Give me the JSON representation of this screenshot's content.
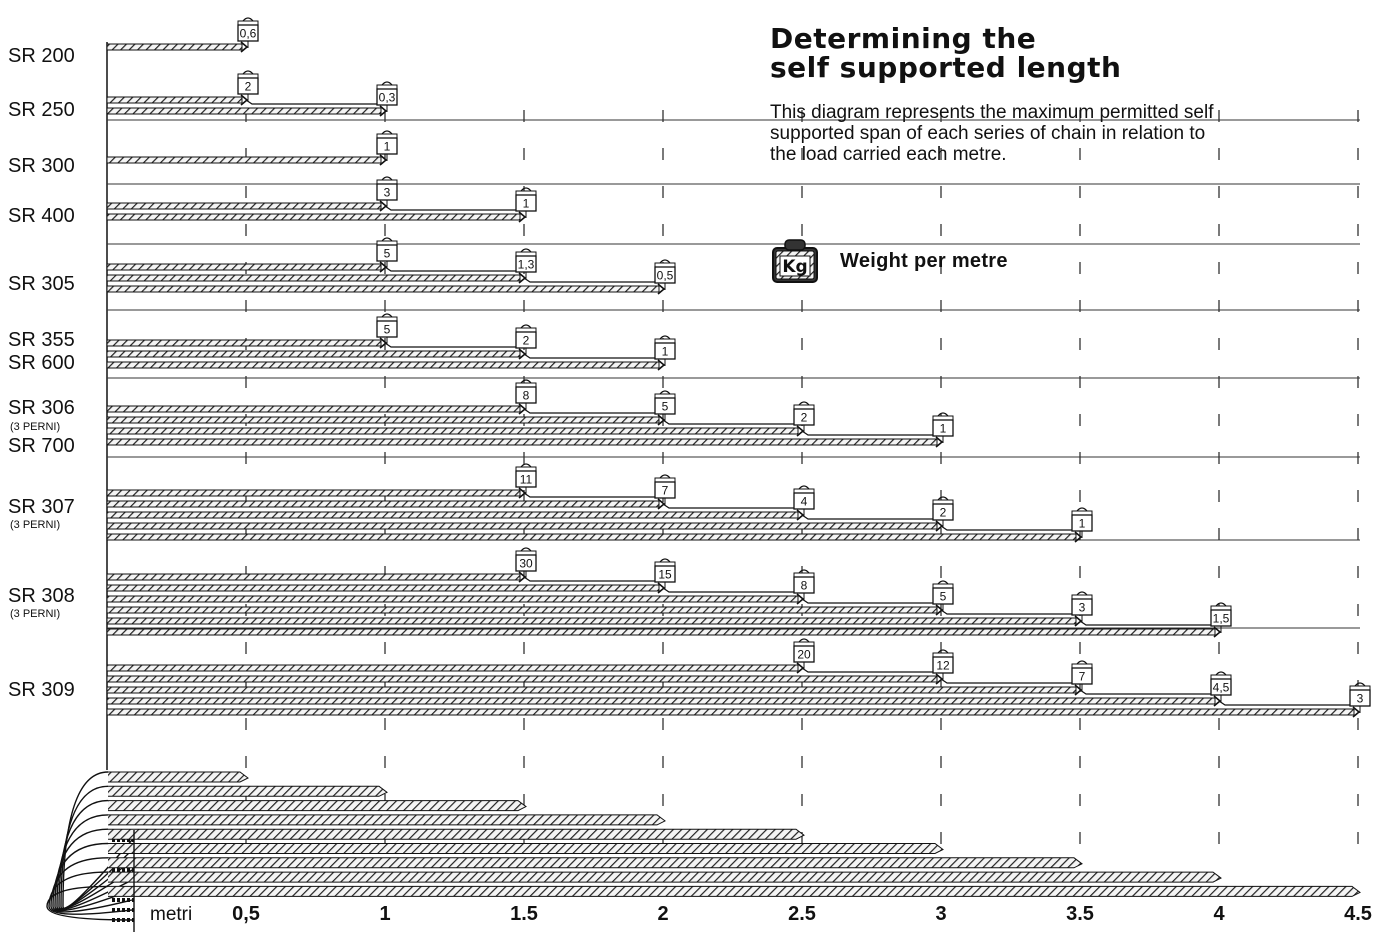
{
  "header": {
    "title_line1": "Determining the",
    "title_line2": "self supported length",
    "description_line1": "This diagram represents the maximum permitted self",
    "description_line2": "supported span of each series of chain in relation to",
    "description_line3": "the load carried each metre."
  },
  "legend": {
    "icon": "kg-weight-icon",
    "icon_text": "Kg",
    "label": "Weight per metre"
  },
  "axis": {
    "unit": "metri",
    "ticks": [
      {
        "value": 0.5,
        "label": "0,5"
      },
      {
        "value": 1,
        "label": "1"
      },
      {
        "value": 1.5,
        "label": "1.5"
      },
      {
        "value": 2,
        "label": "2"
      },
      {
        "value": 2.5,
        "label": "2.5"
      },
      {
        "value": 3,
        "label": "3"
      },
      {
        "value": 3.5,
        "label": "3.5"
      },
      {
        "value": 4,
        "label": "4"
      },
      {
        "value": 4.5,
        "label": "4.5"
      }
    ]
  },
  "chart_data": {
    "type": "bar",
    "title": "Determining the self supported length",
    "xlabel": "metri",
    "xlim": [
      0,
      4.5
    ],
    "groups": [
      {
        "labels": [
          "SR 200"
        ],
        "entries": [
          {
            "length": 0.5,
            "load": "0,6"
          }
        ]
      },
      {
        "labels": [
          "SR 250"
        ],
        "entries": [
          {
            "length": 0.5,
            "load": "2"
          },
          {
            "length": 1,
            "load": "0,3"
          }
        ]
      },
      {
        "labels": [
          "SR 300"
        ],
        "entries": [
          {
            "length": 1,
            "load": "1"
          }
        ]
      },
      {
        "labels": [
          "SR 400"
        ],
        "entries": [
          {
            "length": 1,
            "load": "3"
          },
          {
            "length": 1.5,
            "load": "1"
          }
        ]
      },
      {
        "labels": [
          "SR 305"
        ],
        "entries": [
          {
            "length": 1,
            "load": "5"
          },
          {
            "length": 1.5,
            "load": "1,3"
          },
          {
            "length": 2,
            "load": "0,5"
          }
        ]
      },
      {
        "labels": [
          "SR 355",
          "SR 600"
        ],
        "entries": [
          {
            "length": 1,
            "load": "5"
          },
          {
            "length": 1.5,
            "load": "2"
          },
          {
            "length": 2,
            "load": "1"
          }
        ]
      },
      {
        "labels": [
          "SR 306",
          "(3 PERNI)",
          "SR 700"
        ],
        "entries": [
          {
            "length": 1.5,
            "load": "8"
          },
          {
            "length": 2,
            "load": "5"
          },
          {
            "length": 2.5,
            "load": "2"
          },
          {
            "length": 3,
            "load": "1"
          }
        ]
      },
      {
        "labels": [
          "SR 307",
          "(3 PERNI)"
        ],
        "entries": [
          {
            "length": 1.5,
            "load": "11"
          },
          {
            "length": 2,
            "load": "7"
          },
          {
            "length": 2.5,
            "load": "4"
          },
          {
            "length": 3,
            "load": "2"
          },
          {
            "length": 3.5,
            "load": "1"
          }
        ]
      },
      {
        "labels": [
          "SR 308",
          "(3 PERNI)"
        ],
        "entries": [
          {
            "length": 1.5,
            "load": "30"
          },
          {
            "length": 2,
            "load": "15"
          },
          {
            "length": 2.5,
            "load": "8"
          },
          {
            "length": 3,
            "load": "5"
          },
          {
            "length": 3.5,
            "load": "3"
          },
          {
            "length": 4,
            "load": "1,5"
          }
        ]
      },
      {
        "labels": [
          "SR 309"
        ],
        "entries": [
          {
            "length": 2.5,
            "load": "20"
          },
          {
            "length": 3,
            "load": "12"
          },
          {
            "length": 3.5,
            "load": "7"
          },
          {
            "length": 4,
            "load": "4,5"
          },
          {
            "length": 4.5,
            "load": "3"
          }
        ]
      }
    ],
    "chain_illustration_steps": [
      0.5,
      1,
      1.5,
      2,
      2.5,
      3,
      3.5,
      4,
      4.5
    ]
  }
}
